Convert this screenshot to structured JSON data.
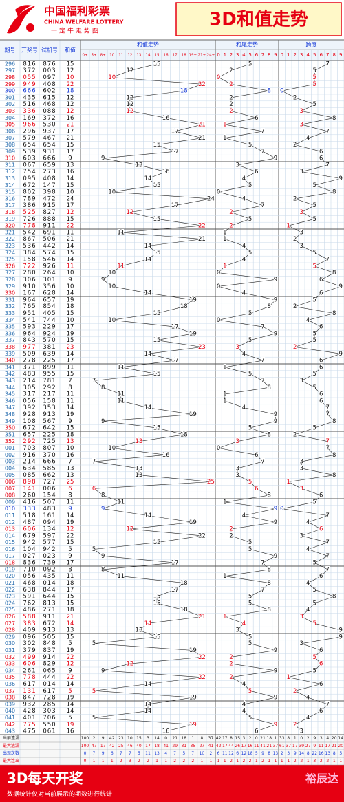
{
  "header": {
    "logo": "中国福利彩票",
    "logo_en": "CHINA WELFARE LOTTERY",
    "slogan": "一定牛走势图",
    "title": "3D和值走势"
  },
  "table": {
    "headers": [
      "期号",
      "开奖号",
      "试机号",
      "和值",
      "和值走势",
      "和尾走势",
      "跨度"
    ],
    "sum_columns": [
      {
        "value": 0,
        "label": "0+"
      },
      {
        "value": 5,
        "label": "5+"
      },
      {
        "value": 8,
        "label": "8+"
      },
      10,
      11,
      12,
      13,
      14,
      15,
      16,
      17,
      18,
      {
        "value": 19,
        "label": "19+"
      },
      {
        "value": 21,
        "label": "21+"
      },
      {
        "value": 24,
        "label": "24+"
      }
    ],
    "tail_columns": [
      0,
      1,
      2,
      3,
      4,
      5,
      6,
      7,
      8,
      9
    ],
    "span_columns": [
      0,
      1,
      2,
      3,
      4,
      5,
      6,
      7,
      8,
      9
    ],
    "rows": [
      [
        "296",
        "816",
        "876",
        15,
        5,
        7
      ],
      [
        "297",
        "372",
        "003",
        12,
        2,
        5
      ],
      [
        "298",
        "055",
        "097",
        10,
        0,
        5,
        "#e60012"
      ],
      [
        "299",
        "949",
        "408",
        22,
        2,
        5,
        "#e60012"
      ],
      [
        "300",
        "666",
        "602",
        18,
        8,
        0,
        "#1a3ed8"
      ],
      [
        "301",
        "435",
        "615",
        12,
        2,
        2
      ],
      [
        "302",
        "516",
        "468",
        12,
        2,
        5
      ],
      [
        "303",
        "336",
        "088",
        12,
        2,
        3,
        "#e60012"
      ],
      [
        "304",
        "169",
        "372",
        16,
        6,
        8
      ],
      [
        "305",
        "966",
        "530",
        21,
        1,
        3,
        "#e60012"
      ],
      [
        "306",
        "296",
        "937",
        17,
        7,
        7
      ],
      [
        "307",
        "579",
        "467",
        21,
        1,
        4
      ],
      [
        "308",
        "654",
        "654",
        15,
        5,
        2
      ],
      [
        "309",
        "539",
        "931",
        17,
        7,
        6
      ],
      [
        "310",
        "603",
        "666",
        9,
        9,
        6
      ],
      [
        "311",
        "067",
        "659",
        13,
        3,
        7
      ],
      [
        "312",
        "754",
        "273",
        16,
        6,
        3
      ],
      [
        "313",
        "095",
        "408",
        14,
        4,
        9
      ],
      [
        "314",
        "672",
        "147",
        15,
        5,
        5
      ],
      [
        "315",
        "802",
        "398",
        10,
        0,
        8
      ],
      [
        "316",
        "789",
        "472",
        24,
        4,
        2
      ],
      [
        "317",
        "386",
        "915",
        17,
        7,
        5
      ],
      [
        "318",
        "525",
        "827",
        12,
        2,
        3,
        "#e60012"
      ],
      [
        "319",
        "726",
        "888",
        15,
        5,
        5
      ],
      [
        "320",
        "778",
        "911",
        22,
        2,
        1,
        "#e60012"
      ],
      [
        "321",
        "542",
        "691",
        11,
        1,
        3
      ],
      [
        "322",
        "867",
        "506",
        21,
        1,
        2
      ],
      [
        "323",
        "536",
        "442",
        14,
        4,
        3
      ],
      [
        "324",
        "384",
        "574",
        15,
        5,
        5
      ],
      [
        "325",
        "158",
        "546",
        14,
        4,
        7
      ],
      [
        "326",
        "722",
        "926",
        11,
        1,
        5,
        "#e60012"
      ],
      [
        "327",
        "280",
        "264",
        10,
        0,
        8
      ],
      [
        "328",
        "306",
        "301",
        9,
        9,
        6
      ],
      [
        "329",
        "910",
        "356",
        10,
        0,
        9
      ],
      [
        "330",
        "167",
        "628",
        14,
        4,
        6
      ],
      [
        "331",
        "964",
        "657",
        19,
        9,
        5
      ],
      [
        "332",
        "765",
        "854",
        18,
        8,
        2
      ],
      [
        "333",
        "951",
        "405",
        15,
        5,
        8
      ],
      [
        "334",
        "541",
        "744",
        10,
        0,
        4
      ],
      [
        "335",
        "593",
        "229",
        17,
        7,
        6
      ],
      [
        "336",
        "964",
        "924",
        19,
        9,
        5
      ],
      [
        "337",
        "843",
        "570",
        15,
        5,
        5
      ],
      [
        "338",
        "977",
        "381",
        23,
        3,
        2,
        "#e60012"
      ],
      [
        "339",
        "509",
        "639",
        14,
        4,
        9
      ],
      [
        "340",
        "278",
        "225",
        17,
        7,
        6
      ],
      [
        "341",
        "371",
        "899",
        11,
        1,
        6
      ],
      [
        "342",
        "483",
        "955",
        15,
        5,
        5
      ],
      [
        "343",
        "214",
        "781",
        7,
        7,
        3
      ],
      [
        "344",
        "305",
        "292",
        8,
        8,
        5
      ],
      [
        "345",
        "317",
        "217",
        11,
        1,
        6
      ],
      [
        "346",
        "056",
        "158",
        11,
        1,
        6
      ],
      [
        "347",
        "392",
        "353",
        14,
        4,
        7
      ],
      [
        "348",
        "928",
        "913",
        19,
        9,
        7
      ],
      [
        "349",
        "108",
        "567",
        9,
        9,
        8
      ],
      [
        "350",
        "672",
        "642",
        15,
        5,
        5
      ],
      [
        "351",
        "657",
        "225",
        18,
        8,
        2
      ],
      [
        "352",
        "292",
        "725",
        13,
        3,
        7,
        "#e60012"
      ],
      [
        "001",
        "703",
        "807",
        10,
        0,
        7
      ],
      [
        "002",
        "916",
        "370",
        16,
        6,
        8
      ],
      [
        "003",
        "214",
        "666",
        7,
        7,
        3
      ],
      [
        "004",
        "634",
        "585",
        13,
        3,
        3
      ],
      [
        "005",
        "085",
        "662",
        13,
        3,
        8
      ],
      [
        "006",
        "898",
        "727",
        25,
        5,
        1,
        "#e60012"
      ],
      [
        "007",
        "141",
        "006",
        6,
        6,
        3,
        "#e60012"
      ],
      [
        "008",
        "260",
        "154",
        8,
        8,
        6
      ],
      [
        "009",
        "416",
        "507",
        11,
        1,
        5
      ],
      [
        "010",
        "333",
        "483",
        9,
        9,
        0,
        "#1a3ed8"
      ],
      [
        "011",
        "518",
        "161",
        14,
        4,
        7
      ],
      [
        "012",
        "487",
        "094",
        19,
        9,
        4
      ],
      [
        "013",
        "606",
        "134",
        12,
        2,
        6,
        "#e60012"
      ],
      [
        "014",
        "679",
        "597",
        22,
        2,
        3
      ],
      [
        "015",
        "942",
        "577",
        15,
        5,
        7
      ],
      [
        "016",
        "104",
        "942",
        5,
        5,
        4
      ],
      [
        "017",
        "027",
        "023",
        9,
        9,
        7
      ],
      [
        "018",
        "836",
        "739",
        17,
        7,
        5
      ],
      [
        "019",
        "710",
        "092",
        8,
        8,
        7
      ],
      [
        "020",
        "056",
        "435",
        11,
        1,
        6
      ],
      [
        "021",
        "468",
        "014",
        18,
        8,
        4
      ],
      [
        "022",
        "638",
        "844",
        17,
        7,
        5
      ],
      [
        "023",
        "591",
        "644",
        15,
        5,
        8
      ],
      [
        "024",
        "762",
        "813",
        15,
        5,
        5
      ],
      [
        "025",
        "486",
        "271",
        18,
        8,
        4
      ],
      [
        "026",
        "588",
        "911",
        21,
        1,
        3,
        "#e60012"
      ],
      [
        "027",
        "383",
        "672",
        14,
        4,
        5,
        "#e60012"
      ],
      [
        "028",
        "409",
        "913",
        13,
        3,
        9
      ],
      [
        "029",
        "096",
        "505",
        15,
        5,
        9
      ],
      [
        "030",
        "302",
        "848",
        5,
        5,
        3
      ],
      [
        "031",
        "379",
        "837",
        19,
        9,
        6
      ],
      [
        "032",
        "499",
        "914",
        22,
        2,
        5,
        "#e60012"
      ],
      [
        "033",
        "606",
        "829",
        12,
        2,
        6,
        "#e60012"
      ],
      [
        "034",
        "261",
        "065",
        9,
        9,
        5
      ],
      [
        "035",
        "778",
        "444",
        22,
        2,
        1,
        "#e60012"
      ],
      [
        "036",
        "617",
        "014",
        14,
        4,
        6
      ],
      [
        "037",
        "131",
        "617",
        5,
        5,
        2,
        "#e60012"
      ],
      [
        "038",
        "847",
        "728",
        19,
        9,
        4
      ],
      [
        "039",
        "932",
        "285",
        14,
        4,
        7
      ],
      [
        "040",
        "428",
        "303",
        14,
        4,
        6
      ],
      [
        "041",
        "401",
        "706",
        5,
        5,
        4
      ],
      [
        "042",
        "775",
        "550",
        19,
        9,
        2,
        "#e60012"
      ],
      [
        "043",
        "475",
        "061",
        16,
        6,
        3
      ]
    ]
  },
  "stats": {
    "labels": [
      "当前遗漏",
      "最大遗漏",
      "出现次数",
      "最大连出"
    ],
    "sum": [
      [
        100,
        2,
        9,
        42,
        23,
        10,
        15,
        3,
        14,
        0,
        21,
        18,
        1,
        8,
        37
      ],
      [
        100,
        47,
        17,
        42,
        25,
        46,
        40,
        17,
        18,
        41,
        29,
        31,
        35,
        27,
        41
      ],
      [
        0,
        7,
        9,
        6,
        7,
        7,
        5,
        11,
        13,
        4,
        7,
        5,
        7,
        10,
        2
      ],
      [
        0,
        1,
        1,
        1,
        2,
        3,
        2,
        2,
        1,
        1,
        2,
        2,
        2,
        1,
        1
      ]
    ],
    "tail": [
      [
        42,
        17,
        8,
        15,
        3,
        2,
        0,
        21,
        18,
        1
      ],
      [
        42,
        17,
        44,
        26,
        17,
        16,
        11,
        41,
        21,
        37
      ],
      [
        6,
        11,
        12,
        6,
        12,
        18,
        5,
        9,
        8,
        13
      ],
      [
        1,
        1,
        2,
        1,
        2,
        2,
        1,
        2,
        1,
        1
      ]
    ],
    "span": [
      [
        33,
        8,
        1,
        0,
        2,
        9,
        3,
        4,
        20,
        14
      ],
      [
        61,
        37,
        17,
        39,
        27,
        9,
        11,
        17,
        21,
        20
      ],
      [
        2,
        3,
        9,
        14,
        8,
        22,
        16,
        13,
        8,
        5
      ],
      [
        1,
        1,
        2,
        2,
        1,
        3,
        2,
        2,
        1,
        1
      ]
    ]
  },
  "footer": {
    "title": "3D每天开奖",
    "note": "数据统计仅对当前展示的期数进行统计",
    "brand": "裕辰达"
  }
}
